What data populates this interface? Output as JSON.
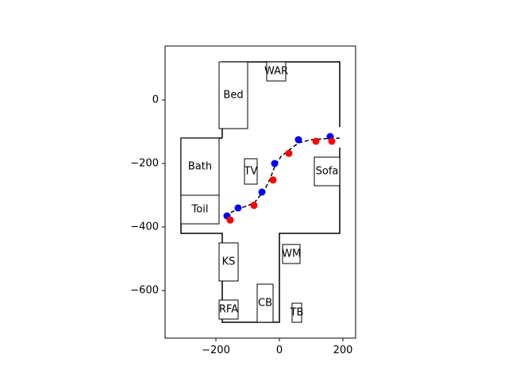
{
  "chart_data": {
    "type": "scatter",
    "title": "",
    "xlabel": "",
    "ylabel": "",
    "xlim": [
      -360,
      240
    ],
    "ylim": [
      -750,
      170
    ],
    "xticks": [
      -200,
      0,
      200
    ],
    "xtick_labels": [
      "−200",
      "0",
      "200"
    ],
    "yticks": [
      0,
      -200,
      -400,
      -600
    ],
    "ytick_labels": [
      "0",
      "−200",
      "−400",
      "−600"
    ],
    "grid": false,
    "legend": "none",
    "floor_plan": [
      {
        "points": [
          [
            -180,
            120
          ],
          [
            -180,
            -120
          ]
        ]
      },
      {
        "points": [
          [
            -180,
            120
          ],
          [
            190,
            120
          ],
          [
            190,
            -85
          ]
        ]
      },
      {
        "points": [
          [
            190,
            -150
          ],
          [
            190,
            -420
          ],
          [
            0,
            -420
          ],
          [
            0,
            -700
          ],
          [
            -180,
            -700
          ],
          [
            -180,
            -420
          ],
          [
            -310,
            -420
          ],
          [
            -310,
            -120
          ],
          [
            -180,
            -120
          ]
        ]
      }
    ],
    "furniture": [
      {
        "label": "Bed",
        "x0": -190,
        "y0": -90,
        "x1": -100,
        "y1": 120,
        "label_pos": [
          -145,
          15
        ]
      },
      {
        "label": "WAR",
        "x0": -40,
        "y0": 60,
        "x1": 20,
        "y1": 120,
        "label_pos": [
          -10,
          90
        ]
      },
      {
        "label": "Bath",
        "x0": -310,
        "y0": -300,
        "x1": -190,
        "y1": -120,
        "label_pos": [
          -250,
          -210
        ]
      },
      {
        "label": "Toil",
        "x0": -310,
        "y0": -390,
        "x1": -190,
        "y1": -300,
        "label_pos": [
          -250,
          -345
        ]
      },
      {
        "label": "TV",
        "x0": -110,
        "y0": -265,
        "x1": -70,
        "y1": -185,
        "label_pos": [
          -90,
          -225
        ]
      },
      {
        "label": "Sofa",
        "x0": 110,
        "y0": -270,
        "x1": 190,
        "y1": -180,
        "label_pos": [
          150,
          -225
        ]
      },
      {
        "label": "KS",
        "x0": -190,
        "y0": -570,
        "x1": -130,
        "y1": -450,
        "label_pos": [
          -160,
          -510
        ]
      },
      {
        "label": "WM",
        "x0": 10,
        "y0": -515,
        "x1": 65,
        "y1": -455,
        "label_pos": [
          38,
          -485
        ]
      },
      {
        "label": "CB",
        "x0": -70,
        "y0": -700,
        "x1": -20,
        "y1": -580,
        "label_pos": [
          -45,
          -640
        ]
      },
      {
        "label": "RFA",
        "x0": -190,
        "y0": -690,
        "x1": -130,
        "y1": -630,
        "label_pos": [
          -160,
          -660
        ]
      },
      {
        "label": "TB",
        "x0": 40,
        "y0": -700,
        "x1": 70,
        "y1": -640,
        "label_pos": [
          55,
          -670
        ]
      }
    ],
    "trajectory": {
      "style": "dashed",
      "color": "#000000",
      "points": [
        [
          -170,
          -365
        ],
        [
          -145,
          -350
        ],
        [
          -115,
          -338
        ],
        [
          -80,
          -325
        ],
        [
          -60,
          -300
        ],
        [
          -45,
          -280
        ],
        [
          -30,
          -250
        ],
        [
          -15,
          -210
        ],
        [
          5,
          -178
        ],
        [
          30,
          -158
        ],
        [
          60,
          -135
        ],
        [
          100,
          -125
        ],
        [
          140,
          -122
        ],
        [
          190,
          -120
        ]
      ]
    },
    "series": [
      {
        "color": "#0000ff",
        "points": [
          [
            -165,
            -365
          ],
          [
            -130,
            -340
          ],
          [
            -55,
            -290
          ],
          [
            -15,
            -200
          ],
          [
            60,
            -125
          ],
          [
            160,
            -115
          ]
        ]
      },
      {
        "color": "#ff0000",
        "points": [
          [
            -155,
            -378
          ],
          [
            -80,
            -332
          ],
          [
            -20,
            -252
          ],
          [
            30,
            -168
          ],
          [
            115,
            -130
          ],
          [
            165,
            -130
          ]
        ]
      }
    ]
  }
}
